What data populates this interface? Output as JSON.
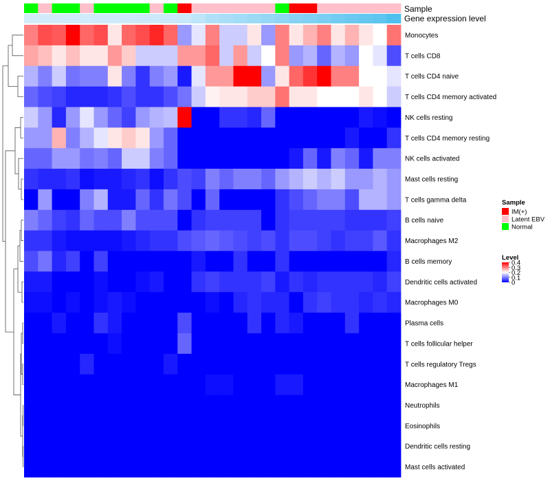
{
  "colors": {
    "low": "#0000ff",
    "mid": "#ffffff",
    "high": "#ff0000",
    "im_pos": "#ff0000",
    "latent_ebv": "#ffc0cb",
    "normal": "#00ff00",
    "gene_low": "#daeefb",
    "gene_high": "#4fc0ee",
    "dendro": "#4d4d4d"
  },
  "chart_data": {
    "type": "heatmap",
    "title": "",
    "annotation_labels": {
      "sample": "Sample",
      "gene_expression": "Gene expression level"
    },
    "rows": [
      "Monocytes",
      "T cells CD8",
      "T cells CD4 naive",
      "T cells CD4 memory activated",
      "NK cells resting",
      "T cells CD4 memory resting",
      "NK cells activated",
      "Mast cells resting",
      "T cells gamma delta",
      "B cells naive",
      "Macrophages M2",
      "B cells memory",
      "Dendritic cells activated",
      "Macrophages M0",
      "Plasma cells",
      "T cells follicular helper",
      "T cells regulatory  Tregs",
      "Macrophages M1",
      "Neutrophils",
      "Eosinophils",
      "Dendritic cells resting",
      "Mast cells activated"
    ],
    "sample_groups": [
      "Normal",
      "Latent EBV",
      "Normal",
      "Normal",
      "Latent EBV",
      "Normal",
      "Normal",
      "Normal",
      "Normal",
      "Latent EBV",
      "Normal",
      "IM(+)",
      "Latent EBV",
      "Latent EBV",
      "Latent EBV",
      "Latent EBV",
      "Latent EBV",
      "Latent EBV",
      "Normal",
      "IM(+)",
      "IM(+)",
      "Latent EBV",
      "Latent EBV",
      "Latent EBV",
      "Latent EBV",
      "Latent EBV",
      "Latent EBV"
    ],
    "gene_expression": [
      0.05,
      0.06,
      0.06,
      0.07,
      0.07,
      0.08,
      0.08,
      0.09,
      0.1,
      0.1,
      0.11,
      0.12,
      0.2,
      0.3,
      0.35,
      0.4,
      0.45,
      0.5,
      0.55,
      0.6,
      0.65,
      0.7,
      0.75,
      0.8,
      0.85,
      0.9,
      1.0
    ],
    "values": [
      [
        0.3,
        0.34,
        0.33,
        0.4,
        0.32,
        0.34,
        0.22,
        0.32,
        0.34,
        0.37,
        0.32,
        0.12,
        0.18,
        0.3,
        0.16,
        0.16,
        0.22,
        0.12,
        0.3,
        0.22,
        0.26,
        0.3,
        0.22,
        0.26,
        0.22,
        0.2,
        0.31
      ],
      [
        0.27,
        0.25,
        0.22,
        0.25,
        0.22,
        0.22,
        0.28,
        0.24,
        0.16,
        0.16,
        0.16,
        0.28,
        0.28,
        0.32,
        0.16,
        0.28,
        0.16,
        0.2,
        0.3,
        0.12,
        0.14,
        0.08,
        0.14,
        0.12,
        0.2,
        0.18,
        0.06
      ],
      [
        0.14,
        0.1,
        0.16,
        0.09,
        0.1,
        0.1,
        0.22,
        0.1,
        0.04,
        0.1,
        0.12,
        0.02,
        0.18,
        0.28,
        0.28,
        0.4,
        0.4,
        0.12,
        0.22,
        0.32,
        0.36,
        0.4,
        0.3,
        0.3,
        0.2,
        0.2,
        0.18
      ],
      [
        0.08,
        0.06,
        0.05,
        0.03,
        0.03,
        0.03,
        0.04,
        0.06,
        0.04,
        0.04,
        0.06,
        0.09,
        0.16,
        0.21,
        0.22,
        0.22,
        0.24,
        0.24,
        0.31,
        0.22,
        0.22,
        0.2,
        0.2,
        0.2,
        0.22,
        0.2,
        0.16
      ],
      [
        0.16,
        0.12,
        0.03,
        0.12,
        0.18,
        0.12,
        0.08,
        0.05,
        0.12,
        0.14,
        0.15,
        0.4,
        0.0,
        0.0,
        0.04,
        0.04,
        0.03,
        0.08,
        0.0,
        0.0,
        0.0,
        0.0,
        0.0,
        0.0,
        0.02,
        0.01,
        0.0
      ],
      [
        0.12,
        0.12,
        0.26,
        0.1,
        0.14,
        0.18,
        0.22,
        0.24,
        0.22,
        0.12,
        0.08,
        0.0,
        0.0,
        0.0,
        0.0,
        0.0,
        0.0,
        0.0,
        0.0,
        0.0,
        0.0,
        0.0,
        0.0,
        0.02,
        0.0,
        0.0,
        0.04
      ],
      [
        0.08,
        0.08,
        0.12,
        0.12,
        0.09,
        0.1,
        0.08,
        0.16,
        0.16,
        0.1,
        0.08,
        0.0,
        0.0,
        0.0,
        0.0,
        0.0,
        0.0,
        0.0,
        0.0,
        0.02,
        0.08,
        0.02,
        0.1,
        0.08,
        0.02,
        0.1,
        0.1
      ],
      [
        0.04,
        0.03,
        0.03,
        0.04,
        0.01,
        0.02,
        0.02,
        0.03,
        0.04,
        0.01,
        0.04,
        0.06,
        0.05,
        0.1,
        0.08,
        0.1,
        0.1,
        0.08,
        0.12,
        0.14,
        0.16,
        0.14,
        0.16,
        0.12,
        0.12,
        0.14,
        0.12
      ],
      [
        0.0,
        0.12,
        0.0,
        0.0,
        0.1,
        0.14,
        0.02,
        0.02,
        0.08,
        0.04,
        0.09,
        0.06,
        0.0,
        0.08,
        0.0,
        0.0,
        0.0,
        0.0,
        0.04,
        0.06,
        0.08,
        0.1,
        0.1,
        0.06,
        0.14,
        0.14,
        0.12
      ],
      [
        0.1,
        0.08,
        0.05,
        0.04,
        0.08,
        0.06,
        0.06,
        0.1,
        0.06,
        0.06,
        0.06,
        0.0,
        0.04,
        0.05,
        0.05,
        0.05,
        0.05,
        0.0,
        0.04,
        0.05,
        0.05,
        0.05,
        0.05,
        0.04,
        0.04,
        0.04,
        0.05
      ],
      [
        0.04,
        0.04,
        0.02,
        0.01,
        0.01,
        0.01,
        0.01,
        0.02,
        0.03,
        0.04,
        0.04,
        0.06,
        0.07,
        0.08,
        0.07,
        0.06,
        0.05,
        0.06,
        0.04,
        0.06,
        0.06,
        0.05,
        0.04,
        0.05,
        0.05,
        0.07,
        0.04
      ],
      [
        0.06,
        0.09,
        0.03,
        0.05,
        0.0,
        0.05,
        0.0,
        0.0,
        0.0,
        0.0,
        0.0,
        0.0,
        0.02,
        0.0,
        0.0,
        0.04,
        0.0,
        0.0,
        0.04,
        0.0,
        0.0,
        0.0,
        0.0,
        0.0,
        0.0,
        0.0,
        0.03
      ],
      [
        0.02,
        0.02,
        0.0,
        0.0,
        0.0,
        0.01,
        0.0,
        0.0,
        0.01,
        0.02,
        0.0,
        0.0,
        0.04,
        0.05,
        0.04,
        0.04,
        0.04,
        0.05,
        0.02,
        0.04,
        0.03,
        0.04,
        0.04,
        0.04,
        0.04,
        0.03,
        0.05
      ],
      [
        0.01,
        0.01,
        0.0,
        0.01,
        0.0,
        0.01,
        0.02,
        0.01,
        0.0,
        0.0,
        0.0,
        0.0,
        0.0,
        0.01,
        0.0,
        0.03,
        0.04,
        0.03,
        0.03,
        0.0,
        0.04,
        0.05,
        0.04,
        0.04,
        0.03,
        0.04,
        0.03
      ],
      [
        0.0,
        0.0,
        0.02,
        0.0,
        0.0,
        0.04,
        0.02,
        0.0,
        0.0,
        0.0,
        0.0,
        0.06,
        0.0,
        0.0,
        0.0,
        0.0,
        0.04,
        0.0,
        0.03,
        0.02,
        0.0,
        0.0,
        0.0,
        0.04,
        0.0,
        0.0,
        0.0
      ],
      [
        0.0,
        0.0,
        0.0,
        0.0,
        0.0,
        0.0,
        0.01,
        0.0,
        0.0,
        0.0,
        0.0,
        0.08,
        0.0,
        0.0,
        0.0,
        0.0,
        0.0,
        0.0,
        0.0,
        0.0,
        0.0,
        0.0,
        0.0,
        0.0,
        0.0,
        0.0,
        0.0
      ],
      [
        0.0,
        0.0,
        0.0,
        0.0,
        0.03,
        0.0,
        0.0,
        0.0,
        0.0,
        0.0,
        0.02,
        0.0,
        0.0,
        0.0,
        0.0,
        0.0,
        0.0,
        0.0,
        0.0,
        0.0,
        0.0,
        0.0,
        0.0,
        0.0,
        0.0,
        0.0,
        0.0
      ],
      [
        0.0,
        0.0,
        0.0,
        0.0,
        0.0,
        0.0,
        0.0,
        0.0,
        0.0,
        0.0,
        0.0,
        0.0,
        0.0,
        0.01,
        0.01,
        0.0,
        0.0,
        0.0,
        0.02,
        0.02,
        0.0,
        0.0,
        0.0,
        0.0,
        0.0,
        0.0,
        0.0
      ],
      [
        0,
        0,
        0,
        0,
        0,
        0,
        0,
        0,
        0,
        0,
        0,
        0,
        0,
        0,
        0,
        0,
        0,
        0,
        0,
        0,
        0,
        0,
        0,
        0,
        0,
        0,
        0
      ],
      [
        0,
        0,
        0,
        0,
        0,
        0,
        0,
        0,
        0,
        0,
        0,
        0,
        0,
        0,
        0,
        0,
        0,
        0,
        0,
        0,
        0,
        0,
        0,
        0,
        0,
        0,
        0
      ],
      [
        0,
        0,
        0,
        0,
        0,
        0,
        0,
        0,
        0,
        0,
        0,
        0,
        0,
        0,
        0,
        0,
        0,
        0,
        0,
        0,
        0,
        0,
        0,
        0,
        0,
        0,
        0
      ],
      [
        0,
        0,
        0,
        0,
        0,
        0,
        0,
        0,
        0,
        0,
        0,
        0,
        0,
        0,
        0,
        0,
        0,
        0,
        0,
        0,
        0,
        0,
        0,
        0,
        0,
        0,
        0
      ]
    ],
    "color_scale": {
      "min": 0,
      "max": 0.4,
      "mid": 0.2
    },
    "legend": {
      "sample_title": "Sample",
      "sample_items": [
        {
          "label": "IM(+)",
          "key": "im_pos"
        },
        {
          "label": "Latent EBV",
          "key": "latent_ebv"
        },
        {
          "label": "Normal",
          "key": "normal"
        }
      ],
      "level_title": "Level",
      "level_ticks": [
        "0.4",
        "0.3",
        "0.2",
        "0.1",
        "0"
      ],
      "level_tick_values": [
        0.4,
        0.3,
        0.2,
        0.1,
        0.0
      ]
    },
    "dendrogram": "row-clustering"
  }
}
